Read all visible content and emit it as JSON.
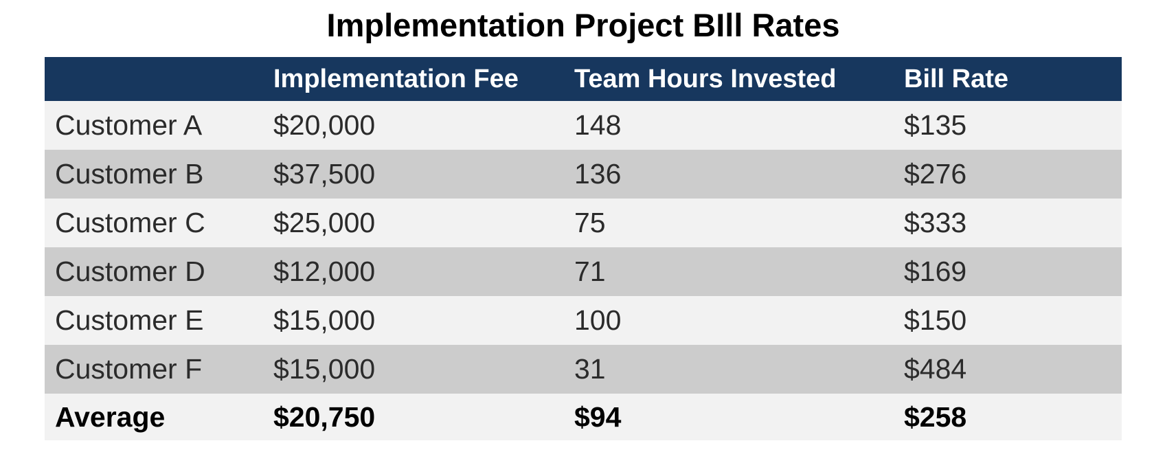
{
  "title": "Implementation Project BIll Rates",
  "table": {
    "headers": [
      "",
      "Implementation Fee",
      "Team Hours Invested",
      "Bill Rate"
    ],
    "rows": [
      [
        "Customer A",
        "$20,000",
        "148",
        "$135"
      ],
      [
        "Customer B",
        "$37,500",
        "136",
        "$276"
      ],
      [
        "Customer C",
        "$25,000",
        "75",
        "$333"
      ],
      [
        "Customer D",
        "$12,000",
        "71",
        "$169"
      ],
      [
        "Customer E",
        "$15,000",
        "100",
        "$150"
      ],
      [
        "Customer F",
        "$15,000",
        "31",
        "$484"
      ],
      [
        "Average",
        "$20,750",
        "$94",
        "$258"
      ]
    ]
  },
  "colors": {
    "header_bg": "#17375E",
    "header_text": "#FFFFFF",
    "row_light": "#F2F2F2",
    "row_dark": "#CCCCCC",
    "body_text": "#2B2B2B"
  },
  "chart_data": {
    "type": "table",
    "title": "Implementation Project BIll Rates",
    "columns": [
      "",
      "Implementation Fee",
      "Team Hours Invested",
      "Bill Rate"
    ],
    "rows": [
      [
        "Customer A",
        "$20,000",
        "148",
        "$135"
      ],
      [
        "Customer B",
        "$37,500",
        "136",
        "$276"
      ],
      [
        "Customer C",
        "$25,000",
        "75",
        "$333"
      ],
      [
        "Customer D",
        "$12,000",
        "71",
        "$169"
      ],
      [
        "Customer E",
        "$15,000",
        "100",
        "$150"
      ],
      [
        "Customer F",
        "$15,000",
        "31",
        "$484"
      ],
      [
        "Average",
        "$20,750",
        "$94",
        "$258"
      ]
    ],
    "notes": {
      "implementation_fee_values": [
        20000,
        37500,
        25000,
        12000,
        15000,
        15000
      ],
      "team_hours_values": [
        148,
        136,
        75,
        71,
        100,
        31
      ],
      "bill_rate_values": [
        135,
        276,
        333,
        169,
        150,
        484
      ],
      "average_fee": 20750,
      "average_hours": 94,
      "average_bill_rate": 258,
      "layout": "header row navy with white bold text; customer rows alternate light gray / gray; bold average totals row"
    }
  }
}
